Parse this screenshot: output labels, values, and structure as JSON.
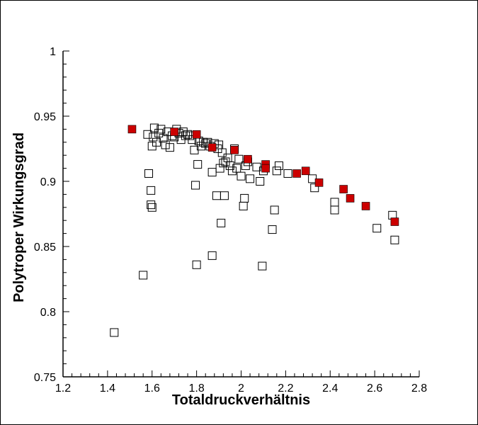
{
  "chart_data": {
    "type": "scatter",
    "title": "",
    "xlabel": "Totaldruckverhältnis",
    "ylabel": "Polytroper Wirkungsgrad",
    "xlim": [
      1.2,
      2.8
    ],
    "ylim": [
      0.75,
      1.0
    ],
    "x_ticks": [
      "1.2",
      "1.4",
      "1.6",
      "1.8",
      "2",
      "2.2",
      "2.4",
      "2.6",
      "2.8"
    ],
    "y_ticks": [
      "0.75",
      "0.8",
      "0.85",
      "0.9",
      "0.95",
      "1"
    ],
    "grid": false,
    "colors": {
      "open_marker_stroke": "#000000",
      "filled_marker": "#cc0000"
    },
    "series": [
      {
        "marker": "open-square",
        "points": [
          [
            1.43,
            0.784
          ],
          [
            1.56,
            0.828
          ],
          [
            1.58,
            0.936
          ],
          [
            1.585,
            0.906
          ],
          [
            1.595,
            0.893
          ],
          [
            1.595,
            0.882
          ],
          [
            1.6,
            0.88
          ],
          [
            1.6,
            0.927
          ],
          [
            1.605,
            0.934
          ],
          [
            1.61,
            0.941
          ],
          [
            1.62,
            0.93
          ],
          [
            1.63,
            0.937
          ],
          [
            1.64,
            0.94
          ],
          [
            1.65,
            0.933
          ],
          [
            1.66,
            0.928
          ],
          [
            1.67,
            0.938
          ],
          [
            1.68,
            0.926
          ],
          [
            1.69,
            0.935
          ],
          [
            1.7,
            0.934
          ],
          [
            1.71,
            0.94
          ],
          [
            1.72,
            0.937
          ],
          [
            1.73,
            0.932
          ],
          [
            1.74,
            0.938
          ],
          [
            1.75,
            0.935
          ],
          [
            1.76,
            0.936
          ],
          [
            1.77,
            0.935
          ],
          [
            1.78,
            0.932
          ],
          [
            1.79,
            0.924
          ],
          [
            1.795,
            0.897
          ],
          [
            1.8,
            0.836
          ],
          [
            1.805,
            0.913
          ],
          [
            1.81,
            0.931
          ],
          [
            1.82,
            0.927
          ],
          [
            1.83,
            0.93
          ],
          [
            1.84,
            0.929
          ],
          [
            1.85,
            0.93
          ],
          [
            1.86,
            0.927
          ],
          [
            1.87,
            0.843
          ],
          [
            1.87,
            0.907
          ],
          [
            1.88,
            0.929
          ],
          [
            1.89,
            0.889
          ],
          [
            1.895,
            0.925
          ],
          [
            1.9,
            0.928
          ],
          [
            1.905,
            0.91
          ],
          [
            1.91,
            0.868
          ],
          [
            1.915,
            0.922
          ],
          [
            1.92,
            0.914
          ],
          [
            1.925,
            0.889
          ],
          [
            1.93,
            0.915
          ],
          [
            1.94,
            0.918
          ],
          [
            1.95,
            0.912
          ],
          [
            1.96,
            0.908
          ],
          [
            1.97,
            0.925
          ],
          [
            1.98,
            0.91
          ],
          [
            1.99,
            0.917
          ],
          [
            2.0,
            0.904
          ],
          [
            2.01,
            0.881
          ],
          [
            2.015,
            0.887
          ],
          [
            2.02,
            0.912
          ],
          [
            2.03,
            0.915
          ],
          [
            2.04,
            0.902
          ],
          [
            2.07,
            0.911
          ],
          [
            2.085,
            0.9
          ],
          [
            2.095,
            0.835
          ],
          [
            2.1,
            0.908
          ],
          [
            2.14,
            0.863
          ],
          [
            2.15,
            0.878
          ],
          [
            2.16,
            0.908
          ],
          [
            2.17,
            0.912
          ],
          [
            2.21,
            0.906
          ],
          [
            2.32,
            0.902
          ],
          [
            2.33,
            0.895
          ],
          [
            2.42,
            0.884
          ],
          [
            2.42,
            0.878
          ],
          [
            2.61,
            0.864
          ],
          [
            2.68,
            0.874
          ],
          [
            2.69,
            0.855
          ]
        ]
      },
      {
        "marker": "filled-square",
        "points": [
          [
            1.51,
            0.94
          ],
          [
            1.7,
            0.938
          ],
          [
            1.8,
            0.936
          ],
          [
            1.87,
            0.926
          ],
          [
            1.97,
            0.924
          ],
          [
            2.03,
            0.917
          ],
          [
            2.11,
            0.913
          ],
          [
            2.11,
            0.91
          ],
          [
            2.25,
            0.906
          ],
          [
            2.29,
            0.908
          ],
          [
            2.35,
            0.899
          ],
          [
            2.46,
            0.894
          ],
          [
            2.49,
            0.887
          ],
          [
            2.56,
            0.881
          ],
          [
            2.69,
            0.869
          ]
        ]
      }
    ]
  }
}
